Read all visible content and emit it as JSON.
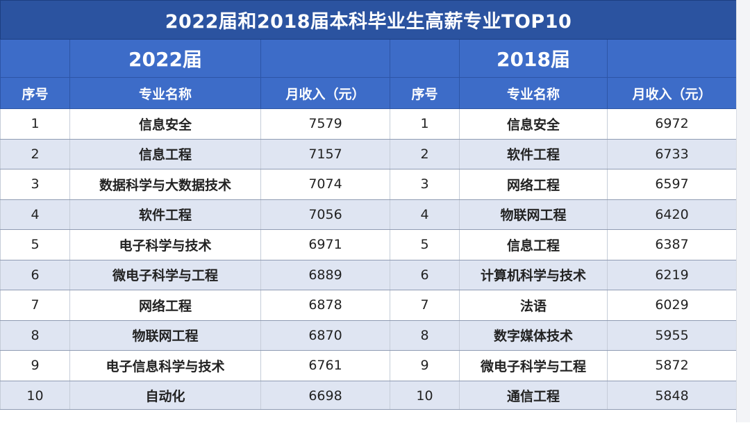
{
  "title": "2022届和2018届本科毕业生高薪专业TOP10",
  "groups": {
    "left": "2022届",
    "right": "2018届"
  },
  "headers": {
    "rank": "序号",
    "major": "专业名称",
    "income": "月收入（元）"
  },
  "rows": [
    {
      "rank_2022": "1",
      "major_2022": "信息安全",
      "income_2022": "7579",
      "rank_2018": "1",
      "major_2018": "信息安全",
      "income_2018": "6972"
    },
    {
      "rank_2022": "2",
      "major_2022": "信息工程",
      "income_2022": "7157",
      "rank_2018": "2",
      "major_2018": "软件工程",
      "income_2018": "6733"
    },
    {
      "rank_2022": "3",
      "major_2022": "数据科学与大数据技术",
      "income_2022": "7074",
      "rank_2018": "3",
      "major_2018": "网络工程",
      "income_2018": "6597"
    },
    {
      "rank_2022": "4",
      "major_2022": "软件工程",
      "income_2022": "7056",
      "rank_2018": "4",
      "major_2018": "物联网工程",
      "income_2018": "6420"
    },
    {
      "rank_2022": "5",
      "major_2022": "电子科学与技术",
      "income_2022": "6971",
      "rank_2018": "5",
      "major_2018": "信息工程",
      "income_2018": "6387"
    },
    {
      "rank_2022": "6",
      "major_2022": "微电子科学与工程",
      "income_2022": "6889",
      "rank_2018": "6",
      "major_2018": "计算机科学与技术",
      "income_2018": "6219"
    },
    {
      "rank_2022": "7",
      "major_2022": "网络工程",
      "income_2022": "6878",
      "rank_2018": "7",
      "major_2018": "法语",
      "income_2018": "6029"
    },
    {
      "rank_2022": "8",
      "major_2022": "物联网工程",
      "income_2022": "6870",
      "rank_2018": "8",
      "major_2018": "数字媒体技术",
      "income_2018": "5955"
    },
    {
      "rank_2022": "9",
      "major_2022": "电子信息科学与技术",
      "income_2022": "6761",
      "rank_2018": "9",
      "major_2018": "微电子科学与工程",
      "income_2018": "5872"
    },
    {
      "rank_2022": "10",
      "major_2022": "自动化",
      "income_2022": "6698",
      "rank_2018": "10",
      "major_2018": "通信工程",
      "income_2018": "5848"
    }
  ],
  "colors": {
    "title_bg": "#2b53a0",
    "header_bg": "#3d6cc8",
    "stripe": "#dfe5f2"
  }
}
